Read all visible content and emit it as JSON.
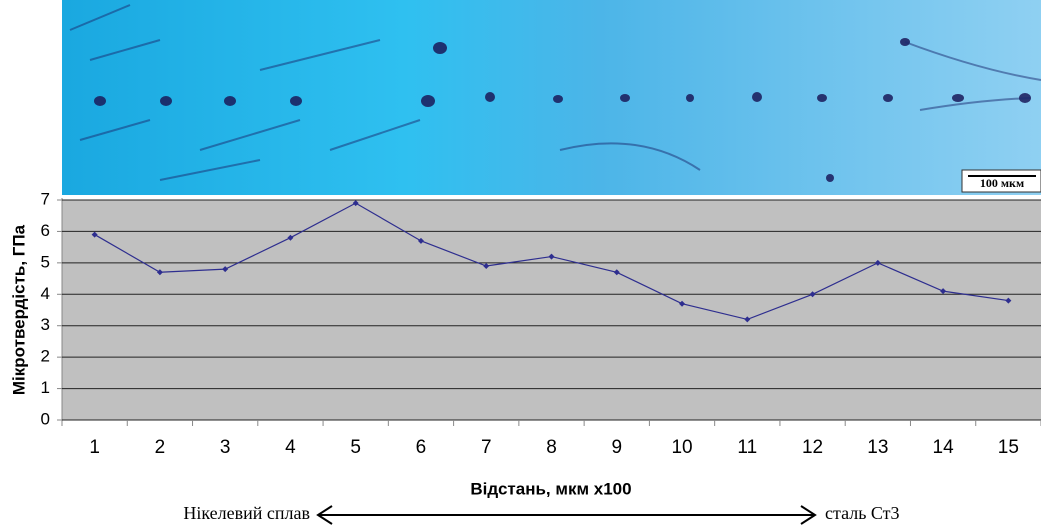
{
  "chart_data": {
    "type": "line",
    "image_scale_label": "100 мкм",
    "ylabel": "Мікротвердість, ГПа",
    "xlabel": "Відстань, мкм x100",
    "categories": [
      1,
      2,
      3,
      4,
      5,
      6,
      7,
      8,
      9,
      10,
      11,
      12,
      13,
      14,
      15
    ],
    "series": [
      {
        "color": "#2e2e8f",
        "values": [
          5.9,
          4.7,
          4.8,
          5.8,
          6.9,
          5.7,
          4.9,
          5.2,
          4.7,
          3.7,
          3.2,
          4.0,
          5.0,
          4.1,
          3.8
        ]
      }
    ],
    "ylim": [
      0,
      7
    ],
    "yticks": [
      0,
      1,
      2,
      3,
      4,
      5,
      6,
      7
    ],
    "grid": true,
    "annotations": [
      "Нікелевий сплав",
      "сталь Ст3"
    ]
  }
}
